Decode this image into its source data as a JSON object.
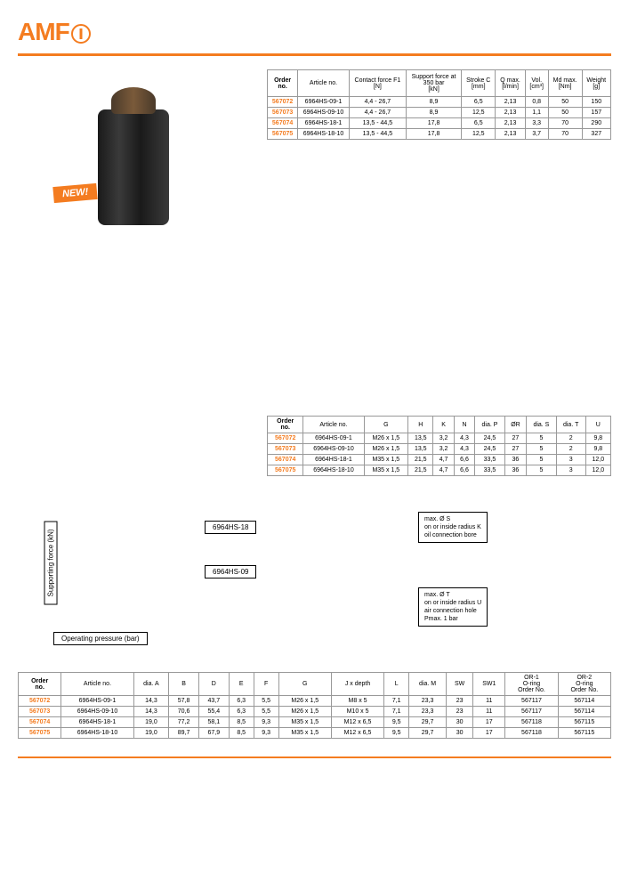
{
  "logo": {
    "text": "AMF"
  },
  "new_badge": "NEW!",
  "table1": {
    "headers": [
      "Order\nno.",
      "Article no.",
      "Contact force F1\n[N]",
      "Support force at\n350 bar\n[kN]",
      "Stroke C\n[mm]",
      "Q max.\n[l/min]",
      "Vol.\n[cm³]",
      "Md max.\n[Nm]",
      "Weight\n[g]"
    ],
    "rows": [
      [
        "567072",
        "6964HS-09-1",
        "4,4 - 26,7",
        "8,9",
        "6,5",
        "2,13",
        "0,8",
        "50",
        "150"
      ],
      [
        "567073",
        "6964HS-09-10",
        "4,4 - 26,7",
        "8,9",
        "12,5",
        "2,13",
        "1,1",
        "50",
        "157"
      ],
      [
        "567074",
        "6964HS-18-1",
        "13,5 - 44,5",
        "17,8",
        "6,5",
        "2,13",
        "3,3",
        "70",
        "290"
      ],
      [
        "567075",
        "6964HS-18-10",
        "13,5 - 44,5",
        "17,8",
        "12,5",
        "2,13",
        "3,7",
        "70",
        "327"
      ]
    ]
  },
  "table2": {
    "headers": [
      "Order\nno.",
      "Article no.",
      "G",
      "H",
      "K",
      "N",
      "dia. P",
      "ØR",
      "dia. S",
      "dia. T",
      "U"
    ],
    "rows": [
      [
        "567072",
        "6964HS-09-1",
        "M26 x 1,5",
        "13,5",
        "3,2",
        "4,3",
        "24,5",
        "27",
        "5",
        "2",
        "9,8"
      ],
      [
        "567073",
        "6964HS-09-10",
        "M26 x 1,5",
        "13,5",
        "3,2",
        "4,3",
        "24,5",
        "27",
        "5",
        "2",
        "9,8"
      ],
      [
        "567074",
        "6964HS-18-1",
        "M35 x 1,5",
        "21,5",
        "4,7",
        "6,6",
        "33,5",
        "36",
        "5",
        "3",
        "12,0"
      ],
      [
        "567075",
        "6964HS-18-10",
        "M35 x 1,5",
        "21,5",
        "4,7",
        "6,6",
        "33,5",
        "36",
        "5",
        "3",
        "12,0"
      ]
    ]
  },
  "chart": {
    "y_label": "Supporting force (kN)",
    "x_label": "Operating pressure (bar)",
    "line1": "6964HS-18",
    "line2": "6964HS-09"
  },
  "notes": {
    "box1": "max. Ø S\non or inside radius K\noil connection bore",
    "box2": "max. Ø T\non or inside radius U\nair connection hole\nPmax. 1 bar"
  },
  "table3": {
    "headers": [
      "Order\nno.",
      "Article no.",
      "dia. A",
      "B",
      "D",
      "E",
      "F",
      "G",
      "J x depth",
      "L",
      "dia. M",
      "SW",
      "SW1",
      "OR-1\nO-ring\nOrder No.",
      "OR-2\nO-ring\nOrder No."
    ],
    "rows": [
      [
        "567072",
        "6964HS-09-1",
        "14,3",
        "57,8",
        "43,7",
        "6,3",
        "5,5",
        "M26 x 1,5",
        "M8 x 5",
        "7,1",
        "23,3",
        "23",
        "11",
        "567117",
        "567114"
      ],
      [
        "567073",
        "6964HS-09-10",
        "14,3",
        "70,6",
        "55,4",
        "6,3",
        "5,5",
        "M26 x 1,5",
        "M10 x 5",
        "7,1",
        "23,3",
        "23",
        "11",
        "567117",
        "567114"
      ],
      [
        "567074",
        "6964HS-18-1",
        "19,0",
        "77,2",
        "58,1",
        "8,5",
        "9,3",
        "M35 x 1,5",
        "M12 x 6,5",
        "9,5",
        "29,7",
        "30",
        "17",
        "567118",
        "567115"
      ],
      [
        "567075",
        "6964HS-18-10",
        "19,0",
        "89,7",
        "67,9",
        "8,5",
        "9,3",
        "M35 x 1,5",
        "M12 x 6,5",
        "9,5",
        "29,7",
        "30",
        "17",
        "567118",
        "567115"
      ]
    ]
  }
}
